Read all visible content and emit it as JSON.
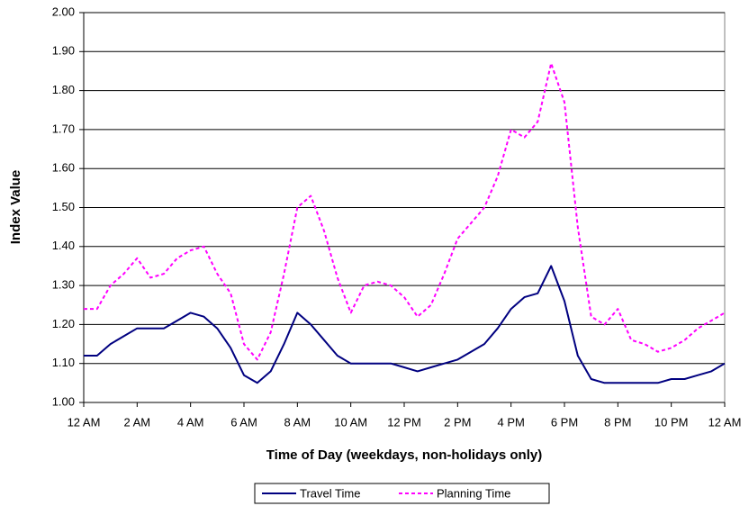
{
  "chart_data": {
    "type": "line",
    "x_label": "Time of Day (weekdays, non-holidays only)",
    "y_label": "Index Value",
    "x": [
      0,
      0.5,
      1,
      1.5,
      2,
      2.5,
      3,
      3.5,
      4,
      4.5,
      5,
      5.5,
      6,
      6.5,
      7,
      7.5,
      8,
      8.5,
      9,
      9.5,
      10,
      10.5,
      11,
      11.5,
      12,
      12.5,
      13,
      13.5,
      14,
      14.5,
      15,
      15.5,
      16,
      16.5,
      17,
      17.5,
      18,
      18.5,
      19,
      19.5,
      20,
      20.5,
      21,
      21.5,
      22,
      22.5,
      23,
      23.5,
      24
    ],
    "series": [
      {
        "name": "Travel Time",
        "color": "#000080",
        "dash": false,
        "values": [
          1.12,
          1.12,
          1.15,
          1.17,
          1.19,
          1.19,
          1.19,
          1.21,
          1.23,
          1.22,
          1.19,
          1.14,
          1.07,
          1.05,
          1.08,
          1.15,
          1.23,
          1.2,
          1.16,
          1.12,
          1.1,
          1.1,
          1.1,
          1.1,
          1.09,
          1.08,
          1.09,
          1.1,
          1.11,
          1.13,
          1.15,
          1.19,
          1.24,
          1.27,
          1.28,
          1.35,
          1.26,
          1.12,
          1.06,
          1.05,
          1.05,
          1.05,
          1.05,
          1.05,
          1.06,
          1.06,
          1.07,
          1.08,
          1.1
        ]
      },
      {
        "name": "Planning Time",
        "color": "#ff00ff",
        "dash": true,
        "values": [
          1.24,
          1.24,
          1.3,
          1.33,
          1.37,
          1.32,
          1.33,
          1.37,
          1.39,
          1.4,
          1.33,
          1.28,
          1.15,
          1.11,
          1.18,
          1.33,
          1.5,
          1.53,
          1.44,
          1.32,
          1.23,
          1.3,
          1.31,
          1.3,
          1.27,
          1.22,
          1.25,
          1.33,
          1.42,
          1.46,
          1.5,
          1.58,
          1.7,
          1.68,
          1.72,
          1.87,
          1.77,
          1.45,
          1.22,
          1.2,
          1.24,
          1.16,
          1.15,
          1.13,
          1.14,
          1.16,
          1.19,
          1.21,
          1.23
        ]
      }
    ],
    "xlim": [
      0,
      24
    ],
    "xticks": [
      {
        "value": 0,
        "label": "12 AM"
      },
      {
        "value": 2,
        "label": "2 AM"
      },
      {
        "value": 4,
        "label": "4 AM"
      },
      {
        "value": 6,
        "label": "6 AM"
      },
      {
        "value": 8,
        "label": "8 AM"
      },
      {
        "value": 10,
        "label": "10 AM"
      },
      {
        "value": 12,
        "label": "12 PM"
      },
      {
        "value": 14,
        "label": "2 PM"
      },
      {
        "value": 16,
        "label": "4 PM"
      },
      {
        "value": 18,
        "label": "6 PM"
      },
      {
        "value": 20,
        "label": "8 PM"
      },
      {
        "value": 22,
        "label": "10 PM"
      },
      {
        "value": 24,
        "label": "12 AM"
      }
    ],
    "ylim": [
      1,
      2
    ],
    "yticks": [
      {
        "value": 1,
        "label": "1.00"
      },
      {
        "value": 1.1,
        "label": "1.10"
      },
      {
        "value": 1.2,
        "label": "1.20"
      },
      {
        "value": 1.3,
        "label": "1.30"
      },
      {
        "value": 1.4,
        "label": "1.40"
      },
      {
        "value": 1.5,
        "label": "1.50"
      },
      {
        "value": 1.6,
        "label": "1.60"
      },
      {
        "value": 1.7,
        "label": "1.70"
      },
      {
        "value": 1.8,
        "label": "1.80"
      },
      {
        "value": 1.9,
        "label": "1.90"
      },
      {
        "value": 2,
        "label": "2.00"
      }
    ],
    "grid": true,
    "legend": "bottom"
  }
}
